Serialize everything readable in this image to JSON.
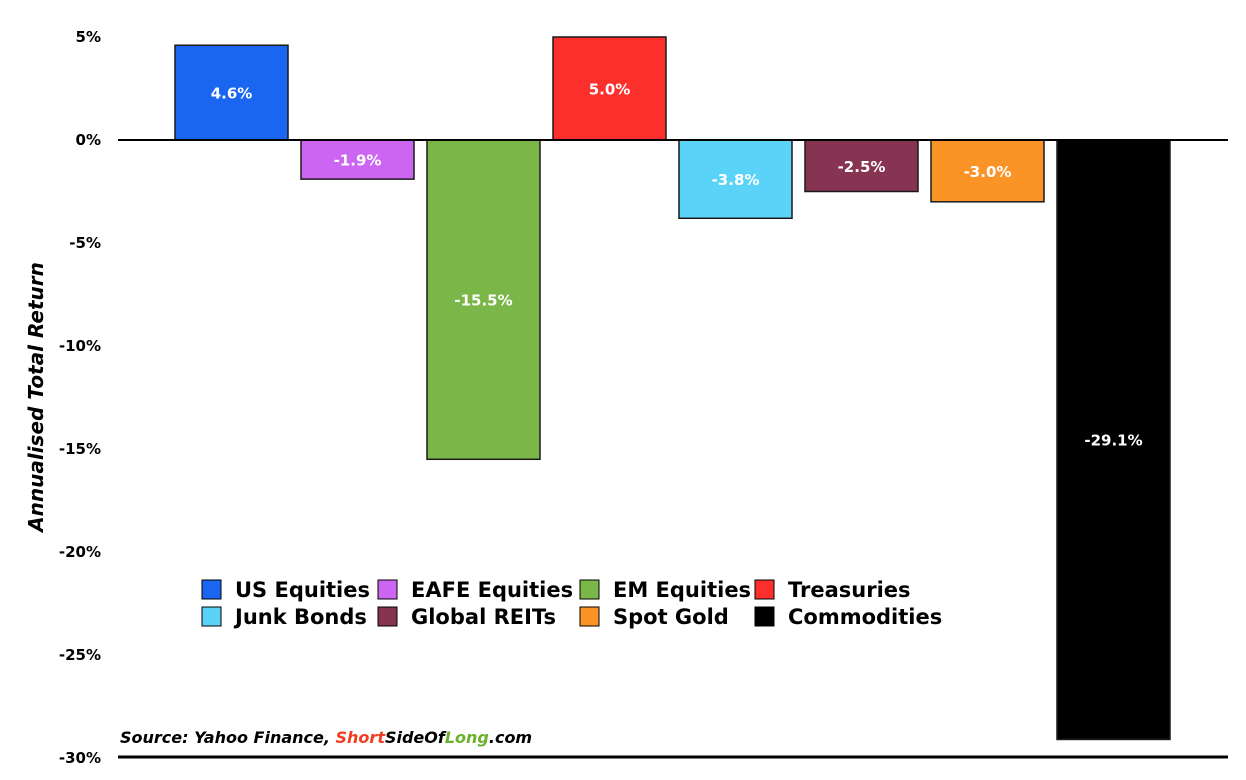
{
  "chart_data": {
    "type": "bar",
    "ylabel": "Annualised Total Return",
    "ylim": [
      -30,
      5
    ],
    "yticks": [
      5,
      0,
      -5,
      -10,
      -15,
      -20,
      -25,
      -30
    ],
    "ytick_labels": [
      "5%",
      "0%",
      "-5%",
      "-10%",
      "-15%",
      "-20%",
      "-25%",
      "-30%"
    ],
    "grid": false,
    "legend_position": "lower-left",
    "categories": [
      "US Equities",
      "EAFE Equities",
      "EM Equities",
      "Treasuries",
      "Junk Bonds",
      "Global REITs",
      "Spot Gold",
      "Commodities"
    ],
    "values": [
      4.6,
      -1.9,
      -15.5,
      5.0,
      -3.8,
      -2.5,
      -3.0,
      -29.1
    ],
    "data_labels": [
      "4.6%",
      "-1.9%",
      "-15.5%",
      "5.0%",
      "-3.8%",
      "-2.5%",
      "-3.0%",
      "-29.1%"
    ],
    "colors": [
      "#1a66f0",
      "#cc66f2",
      "#7ab648",
      "#fc2f2c",
      "#5bd3f8",
      "#873452",
      "#fb9426",
      "#000000"
    ]
  },
  "source": {
    "prefix": "Source: Yahoo Finance, ",
    "brand_part1": "Short",
    "brand_part2": "SideOf",
    "brand_part3": "Long",
    "suffix": ".com",
    "brand_color1": "#f23d22",
    "brand_color3": "#6ab22d"
  }
}
